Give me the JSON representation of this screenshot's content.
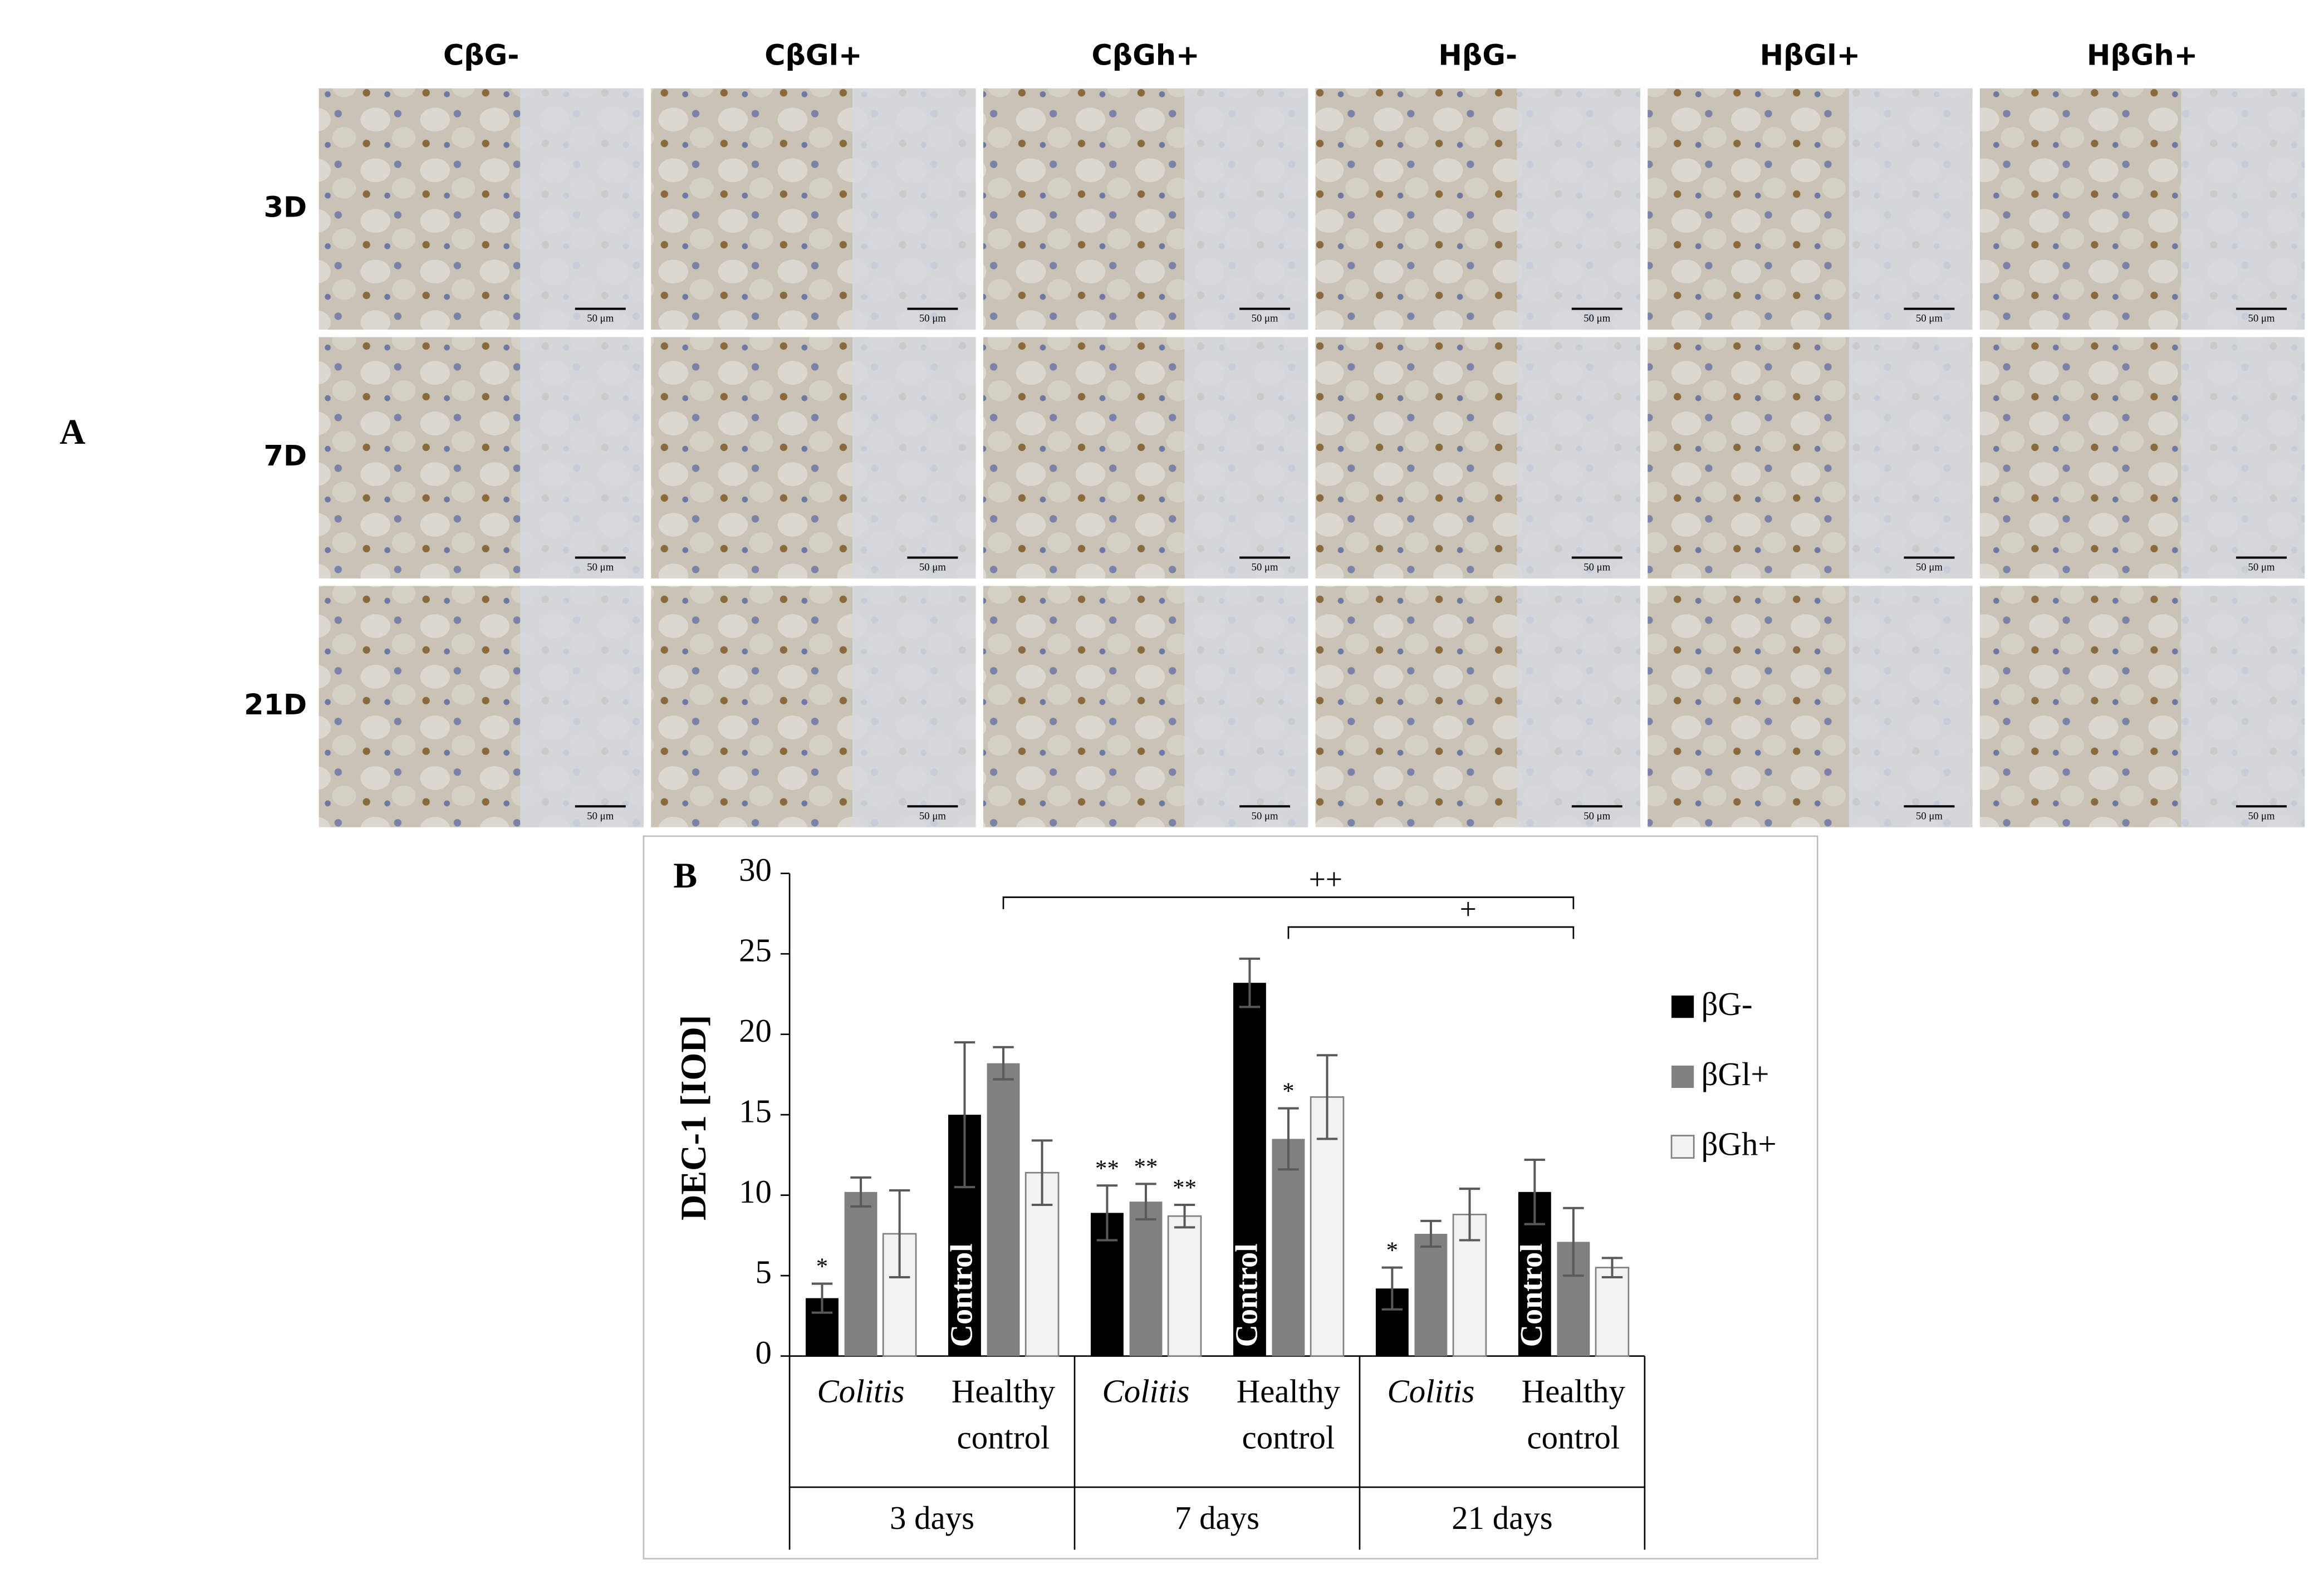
{
  "figure": {
    "panel_a": {
      "label": "A",
      "columns": [
        "CβG-",
        "CβGl+",
        "CβGh+",
        "HβG-",
        "HβGl+",
        "HβGh+"
      ],
      "rows": [
        "3D",
        "7D",
        "21D"
      ],
      "scale_bar_label": "50 μm"
    },
    "panel_b": {
      "label": "B"
    }
  },
  "chart_data": {
    "type": "bar",
    "y_label": "DEC-1 [IOD]",
    "categories": [
      "Colitis",
      "Healthy control",
      "Colitis",
      "Healthy control",
      "Colitis",
      "Healthy control"
    ],
    "periods": [
      "3 days",
      "7 days",
      "21 days"
    ],
    "series": [
      {
        "name": "βG-",
        "color": "#000000",
        "values": [
          3.6,
          15.0,
          8.9,
          23.2,
          4.2,
          10.2
        ],
        "errors": [
          0.9,
          4.5,
          1.7,
          1.5,
          1.3,
          2.0
        ],
        "significance": [
          "*",
          null,
          "**",
          null,
          "*",
          null
        ],
        "inner_labels": [
          null,
          "Control",
          null,
          "Control",
          null,
          "Control"
        ]
      },
      {
        "name": "βGl+",
        "color": "#808080",
        "values": [
          10.2,
          18.2,
          9.6,
          13.5,
          7.6,
          7.1
        ],
        "errors": [
          0.9,
          1.0,
          1.1,
          1.9,
          0.8,
          2.1
        ],
        "significance": [
          null,
          null,
          "**",
          "*",
          null,
          null
        ]
      },
      {
        "name": "βGh+",
        "color": "#f2f2f2",
        "values": [
          7.6,
          11.4,
          8.7,
          16.1,
          8.8,
          5.5
        ],
        "errors": [
          2.7,
          2.0,
          0.7,
          2.6,
          1.6,
          0.6
        ],
        "significance": [
          null,
          null,
          "**",
          null,
          null,
          null
        ]
      }
    ],
    "brackets": [
      {
        "text": "++",
        "groups": [
          1,
          5
        ]
      },
      {
        "text": "+",
        "groups": [
          3,
          5
        ]
      }
    ],
    "ylim": [
      0,
      30
    ],
    "yticks": [
      0,
      5,
      10,
      15,
      20,
      25,
      30
    ],
    "legend": "right"
  }
}
